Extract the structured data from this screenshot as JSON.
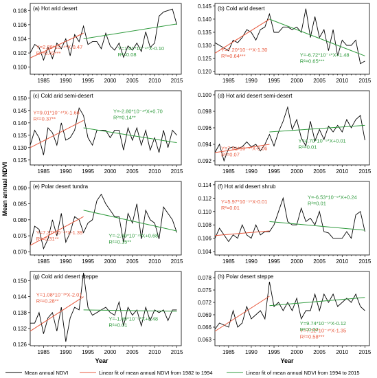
{
  "figure": {
    "ylabel": "Mean annual NDVI",
    "xlabel": "Year",
    "legend": [
      {
        "label": "Mean annual NDVI",
        "color": "#000000"
      },
      {
        "label": "Linear fit of mean annual NDVI from 1982 to 1994",
        "color": "#e8583c"
      },
      {
        "label": "Linear fit of mean annual NDVI from 1994 to 2015",
        "color": "#2e9a3c"
      }
    ]
  },
  "chart_data": [
    {
      "type": "line",
      "title": "(a) Hot arid desert",
      "xlim": [
        1982,
        2016
      ],
      "ylim": [
        0.099,
        0.109
      ],
      "yticks": [
        "0.100",
        "0.102",
        "0.104",
        "0.106",
        "0.108"
      ],
      "ytick_values": [
        0.1,
        0.102,
        0.104,
        0.106,
        0.108
      ],
      "xticks": [
        1985,
        1990,
        1995,
        2000,
        2005,
        2010,
        2015
      ],
      "x": [
        1982,
        1983,
        1984,
        1985,
        1986,
        1987,
        1988,
        1989,
        1990,
        1991,
        1992,
        1993,
        1994,
        1995,
        1996,
        1997,
        1998,
        1999,
        2000,
        2001,
        2002,
        2003,
        2004,
        2005,
        2006,
        2007,
        2008,
        2009,
        2010,
        2011,
        2012,
        2013,
        2014,
        2015
      ],
      "series": [
        {
          "values": [
            0.102,
            0.1032,
            0.1028,
            0.101,
            0.1028,
            0.1012,
            0.1034,
            0.1026,
            0.104,
            0.1016,
            0.1046,
            0.1036,
            0.1058,
            0.1032,
            0.1036,
            0.1036,
            0.1026,
            0.1048,
            0.103,
            0.1024,
            0.1034,
            0.1014,
            0.103,
            0.1024,
            0.1034,
            0.1022,
            0.105,
            0.1028,
            0.1034,
            0.1072,
            0.1078,
            0.108,
            0.1082,
            0.106
          ]
        }
      ],
      "fit1": {
        "x": [
          1982,
          1994
        ],
        "y": [
          0.1013,
          0.1048
        ]
      },
      "fit2": {
        "x": [
          1994,
          2015
        ],
        "y": [
          0.104,
          0.1061
        ]
      },
      "eq1": {
        "line1": "Y=2.88*10⁻⁴*X-0.47",
        "line2": "R²=0.43***"
      },
      "eq2": {
        "line1": "Y=1.01*10⁻⁴*X-0.10",
        "line2": "R²=0.08"
      }
    },
    {
      "type": "line",
      "title": "(b) Cold arid desert",
      "xlim": [
        1982,
        2016
      ],
      "ylim": [
        0.119,
        0.146
      ],
      "yticks": [
        "0.120",
        "0.125",
        "0.130",
        "0.135",
        "0.140",
        "0.145"
      ],
      "ytick_values": [
        0.12,
        0.125,
        0.13,
        0.135,
        0.14,
        0.145
      ],
      "xticks": [
        1985,
        1990,
        1995,
        2000,
        2005,
        2010,
        2015
      ],
      "x": [
        1982,
        1983,
        1984,
        1985,
        1986,
        1987,
        1988,
        1989,
        1990,
        1991,
        1992,
        1993,
        1994,
        1995,
        1996,
        1997,
        1998,
        1999,
        2000,
        2001,
        2002,
        2003,
        2004,
        2005,
        2006,
        2007,
        2008,
        2009,
        2010,
        2011,
        2012,
        2013,
        2014,
        2015
      ],
      "series": [
        {
          "values": [
            0.131,
            0.13,
            0.129,
            0.128,
            0.132,
            0.131,
            0.133,
            0.136,
            0.135,
            0.132,
            0.136,
            0.137,
            0.142,
            0.135,
            0.135,
            0.137,
            0.137,
            0.136,
            0.137,
            0.135,
            0.144,
            0.133,
            0.141,
            0.133,
            0.136,
            0.128,
            0.136,
            0.126,
            0.132,
            0.13,
            0.13,
            0.132,
            0.123,
            0.124
          ]
        }
      ],
      "fit1": {
        "x": [
          1982,
          1994
        ],
        "y": [
          0.127,
          0.14
        ]
      },
      "fit2": {
        "x": [
          1994,
          2015
        ],
        "y": [
          0.14,
          0.126
        ]
      },
      "eq1": {
        "line1": "Y=7.20*10⁻⁴*X-1.30",
        "line2": "R²=0.64***"
      },
      "eq2": {
        "line1": "Y=-6.72*10⁻⁴*X+1.48",
        "line2": "R²=0.65***"
      }
    },
    {
      "type": "line",
      "title": "(c) Cold arid semi-desert",
      "xlim": [
        1982,
        2016
      ],
      "ylim": [
        0.123,
        0.153
      ],
      "yticks": [
        "0.125",
        "0.130",
        "0.135",
        "0.140",
        "0.145",
        "0.150"
      ],
      "ytick_values": [
        0.125,
        0.13,
        0.135,
        0.14,
        0.145,
        0.15
      ],
      "xticks": [
        1985,
        1990,
        1995,
        2000,
        2005,
        2010,
        2015
      ],
      "x": [
        1982,
        1983,
        1984,
        1985,
        1986,
        1987,
        1988,
        1989,
        1990,
        1991,
        1992,
        1993,
        1994,
        1995,
        1996,
        1997,
        1998,
        1999,
        2000,
        2001,
        2002,
        2003,
        2004,
        2005,
        2006,
        2007,
        2008,
        2009,
        2010,
        2011,
        2012,
        2013,
        2014,
        2015
      ],
      "series": [
        {
          "values": [
            0.131,
            0.137,
            0.134,
            0.127,
            0.138,
            0.136,
            0.131,
            0.14,
            0.133,
            0.134,
            0.137,
            0.146,
            0.143,
            0.134,
            0.131,
            0.137,
            0.137,
            0.137,
            0.134,
            0.137,
            0.137,
            0.129,
            0.138,
            0.133,
            0.138,
            0.131,
            0.137,
            0.129,
            0.134,
            0.128,
            0.137,
            0.13,
            0.137,
            0.135
          ]
        }
      ],
      "fit1": {
        "x": [
          1982,
          1994
        ],
        "y": [
          0.13,
          0.141
        ]
      },
      "fit2": {
        "x": [
          1994,
          2015
        ],
        "y": [
          0.138,
          0.132
        ]
      },
      "eq1": {
        "line1": "Y=9.01*10⁻⁴*X-1.66",
        "line2": "R²=0.37**"
      },
      "eq2": {
        "line1": "Y=-2.80*10⁻⁴*X+0.70",
        "line2": "R²=0.14**"
      }
    },
    {
      "type": "line",
      "title": "(d) Hot arid desert semi-desert",
      "xlim": [
        1982,
        2016
      ],
      "ylim": [
        0.0915,
        0.1005
      ],
      "yticks": [
        "0.092",
        "0.094",
        "0.096",
        "0.098",
        "0.100"
      ],
      "ytick_values": [
        0.092,
        0.094,
        0.096,
        0.098,
        0.1
      ],
      "xticks": [
        1985,
        1990,
        1995,
        2000,
        2005,
        2010,
        2015
      ],
      "x": [
        1982,
        1983,
        1984,
        1985,
        1986,
        1987,
        1988,
        1989,
        1990,
        1991,
        1992,
        1993,
        1994,
        1995,
        1996,
        1997,
        1998,
        1999,
        2000,
        2001,
        2002,
        2003,
        2004,
        2005,
        2006,
        2007,
        2008,
        2009,
        2010,
        2011,
        2012,
        2013,
        2014,
        2015
      ],
      "series": [
        {
          "values": [
            0.093,
            0.094,
            0.092,
            0.0935,
            0.0937,
            0.0935,
            0.0937,
            0.0943,
            0.0937,
            0.094,
            0.0932,
            0.094,
            0.0952,
            0.0938,
            0.0955,
            0.0968,
            0.0985,
            0.0958,
            0.097,
            0.0948,
            0.0938,
            0.0968,
            0.0944,
            0.0958,
            0.0946,
            0.0962,
            0.0955,
            0.0963,
            0.0955,
            0.097,
            0.096,
            0.097,
            0.0975,
            0.0945
          ]
        }
      ],
      "fit1": {
        "x": [
          1982,
          1994
        ],
        "y": [
          0.093,
          0.094
        ]
      },
      "fit2": {
        "x": [
          1994,
          2015
        ],
        "y": [
          0.0955,
          0.0963
        ]
      },
      "eq1": {
        "line1": "Y=7.91*10⁻⁵*X-0.06",
        "line2": "R²=0.07"
      },
      "eq2": {
        "line1": "Y=4.70*10⁻⁵*X+0.01",
        "line2": "R²=0.01"
      }
    },
    {
      "type": "line",
      "title": "(e) Polar desert tundra",
      "xlim": [
        1982,
        2016
      ],
      "ylim": [
        0.069,
        0.092
      ],
      "yticks": [
        "0.070",
        "0.075",
        "0.080",
        "0.085",
        "0.090"
      ],
      "ytick_values": [
        0.07,
        0.075,
        0.08,
        0.085,
        0.09
      ],
      "xticks": [
        1985,
        1990,
        1995,
        2000,
        2005,
        2010,
        2015
      ],
      "x": [
        1982,
        1983,
        1984,
        1985,
        1986,
        1987,
        1988,
        1989,
        1990,
        1991,
        1992,
        1993,
        1994,
        1995,
        1996,
        1997,
        1998,
        1999,
        2000,
        2001,
        2002,
        2003,
        2004,
        2005,
        2006,
        2007,
        2008,
        2009,
        2010,
        2011,
        2012,
        2013,
        2014,
        2015
      ],
      "series": [
        {
          "values": [
            0.072,
            0.078,
            0.077,
            0.071,
            0.074,
            0.08,
            0.075,
            0.082,
            0.073,
            0.076,
            0.081,
            0.08,
            0.076,
            0.079,
            0.08,
            0.086,
            0.088,
            0.085,
            0.083,
            0.081,
            0.081,
            0.073,
            0.082,
            0.079,
            0.085,
            0.074,
            0.083,
            0.08,
            0.079,
            0.074,
            0.084,
            0.082,
            0.08,
            0.076
          ]
        }
      ],
      "fit1": {
        "x": [
          1982,
          1994
        ],
        "y": [
          0.072,
          0.081
        ]
      },
      "fit2": {
        "x": [
          1994,
          2015
        ],
        "y": [
          0.083,
          0.0765
        ]
      },
      "eq1": {
        "line1": "Y=7.37*10⁻⁴*X-1.39",
        "line2": "R²=0.31**"
      },
      "eq2": {
        "line1": "Y=-2.99*10⁻⁴*X+0.68",
        "line2": "R²=0.15**"
      }
    },
    {
      "type": "line",
      "title": "(f) Hot arid desert shrub",
      "xlim": [
        1982,
        2016
      ],
      "ylim": [
        0.1035,
        0.1145
      ],
      "yticks": [
        "0.104",
        "0.106",
        "0.108",
        "0.110",
        "0.112",
        "0.114"
      ],
      "ytick_values": [
        0.104,
        0.106,
        0.108,
        0.11,
        0.112,
        0.114
      ],
      "xticks": [
        1985,
        1990,
        1995,
        2000,
        2005,
        2010,
        2015
      ],
      "x": [
        1982,
        1983,
        1984,
        1985,
        1986,
        1987,
        1988,
        1989,
        1990,
        1991,
        1992,
        1993,
        1994,
        1995,
        1996,
        1997,
        1998,
        1999,
        2000,
        2001,
        2002,
        2003,
        2004,
        2005,
        2006,
        2007,
        2008,
        2009,
        2010,
        2011,
        2012,
        2013,
        2014,
        2015
      ],
      "series": [
        {
          "values": [
            0.106,
            0.1075,
            0.1065,
            0.1055,
            0.1065,
            0.106,
            0.108,
            0.1065,
            0.106,
            0.108,
            0.1065,
            0.107,
            0.107,
            0.108,
            0.11,
            0.112,
            0.1085,
            0.108,
            0.108,
            0.1105,
            0.1085,
            0.109,
            0.108,
            0.11,
            0.107,
            0.1068,
            0.106,
            0.106,
            0.106,
            0.107,
            0.106,
            0.1095,
            0.11,
            0.107
          ]
        }
      ],
      "fit1": {
        "x": [
          1982,
          1994
        ],
        "y": [
          0.1064,
          0.1071
        ]
      },
      "fit2": {
        "x": [
          1994,
          2015
        ],
        "y": [
          0.1085,
          0.1072
        ]
      },
      "eq1": {
        "line1": "Y=5.97*10⁻⁵*X-0.01",
        "line2": "R²=0.01"
      },
      "eq2": {
        "line1": "Y=-6.53*10⁻⁵*X+0.24",
        "line2": "R²=0.01"
      }
    },
    {
      "type": "line",
      "title": "(g) Cold arid desert steppe",
      "xlim": [
        1982,
        2016
      ],
      "ylim": [
        0.1255,
        0.1535
      ],
      "yticks": [
        "0.126",
        "0.132",
        "0.138",
        "0.144",
        "0.150"
      ],
      "ytick_values": [
        0.126,
        0.132,
        0.138,
        0.144,
        0.15
      ],
      "xticks": [
        1985,
        1990,
        1995,
        2000,
        2005,
        2010,
        2015
      ],
      "x": [
        1982,
        1983,
        1984,
        1985,
        1986,
        1987,
        1988,
        1989,
        1990,
        1991,
        1992,
        1993,
        1994,
        1995,
        1996,
        1997,
        1998,
        1999,
        2000,
        2001,
        2002,
        2003,
        2004,
        2005,
        2006,
        2007,
        2008,
        2009,
        2010,
        2011,
        2012,
        2013,
        2014,
        2015
      ],
      "series": [
        {
          "values": [
            0.134,
            0.134,
            0.138,
            0.13,
            0.136,
            0.138,
            0.131,
            0.14,
            0.127,
            0.136,
            0.14,
            0.139,
            0.153,
            0.14,
            0.137,
            0.138,
            0.139,
            0.14,
            0.138,
            0.137,
            0.142,
            0.133,
            0.14,
            0.137,
            0.139,
            0.133,
            0.14,
            0.135,
            0.139,
            0.138,
            0.139,
            0.135,
            0.139,
            0.139
          ]
        }
      ],
      "fit1": {
        "x": [
          1982,
          1994
        ],
        "y": [
          0.131,
          0.144
        ]
      },
      "fit2": {
        "x": [
          1994,
          2015
        ],
        "y": [
          0.139,
          0.1385
        ]
      },
      "eq1": {
        "line1": "Y=1.08*10⁻³*X-2.01",
        "line2": "R²=0.28**"
      },
      "eq2": {
        "line1": "Y=-1.69*10⁻⁵*X+0.48",
        "line2": "R²=0.01"
      }
    },
    {
      "type": "line",
      "title": "(h) Polar desert steppe",
      "xlim": [
        1982,
        2016
      ],
      "ylim": [
        0.0615,
        0.0795
      ],
      "yticks": [
        "0.063",
        "0.066",
        "0.069",
        "0.072",
        "0.075",
        "0.078"
      ],
      "ytick_values": [
        0.063,
        0.066,
        0.069,
        0.072,
        0.075,
        0.078
      ],
      "xticks": [
        1985,
        1990,
        1995,
        2000,
        2005,
        2010,
        2015
      ],
      "x": [
        1982,
        1983,
        1984,
        1985,
        1986,
        1987,
        1988,
        1989,
        1990,
        1991,
        1992,
        1993,
        1994,
        1995,
        1996,
        1997,
        1998,
        1999,
        2000,
        2001,
        2002,
        2003,
        2004,
        2005,
        2006,
        2007,
        2008,
        2009,
        2010,
        2011,
        2012,
        2013,
        2014,
        2015
      ],
      "series": [
        {
          "values": [
            0.0655,
            0.067,
            0.0665,
            0.066,
            0.07,
            0.066,
            0.067,
            0.071,
            0.068,
            0.069,
            0.07,
            0.068,
            0.077,
            0.071,
            0.072,
            0.07,
            0.072,
            0.07,
            0.073,
            0.068,
            0.07,
            0.07,
            0.074,
            0.07,
            0.074,
            0.072,
            0.074,
            0.071,
            0.072,
            0.073,
            0.072,
            0.074,
            0.071,
            0.07
          ]
        }
      ],
      "fit1": {
        "x": [
          1982,
          1994
        ],
        "y": [
          0.065,
          0.0735
        ]
      },
      "fit2": {
        "x": [
          1994,
          2015
        ],
        "y": [
          0.0712,
          0.0732
        ]
      },
      "eq1": {
        "line1": "Y=7.12*10⁻⁴*X-1.35",
        "line2": "R²=0.58***"
      },
      "eq2": {
        "line1": "Y=9.74*10⁻⁵*X-0.12",
        "line2": "R²=0.02"
      }
    }
  ]
}
